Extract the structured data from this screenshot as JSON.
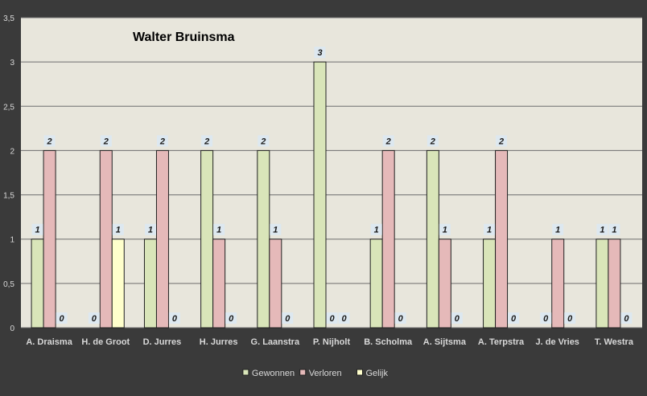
{
  "chart_data": {
    "type": "bar",
    "title": "Walter Bruinsma",
    "categories": [
      "A. Draisma",
      "H. de Groot",
      "D. Jurres",
      "H. Jurres",
      "G. Laanstra",
      "P. Nijholt",
      "B. Scholma",
      "A. Sijtsma",
      "A. Terpstra",
      "J. de Vries",
      "T. Westra"
    ],
    "series": [
      {
        "name": "Gewonnen",
        "color": "#d9e5b9",
        "values": [
          1,
          0,
          1,
          2,
          2,
          3,
          1,
          2,
          1,
          0,
          1
        ]
      },
      {
        "name": "Verloren",
        "color": "#e5b9b9",
        "values": [
          2,
          2,
          2,
          1,
          1,
          0,
          2,
          1,
          2,
          1,
          1
        ]
      },
      {
        "name": "Gelijk",
        "color": "#ffffcc",
        "values": [
          0,
          1,
          0,
          0,
          0,
          0,
          0,
          0,
          0,
          0,
          0
        ]
      }
    ],
    "ylim": [
      0,
      3.5
    ],
    "yticks": [
      "0",
      "0,5",
      "1",
      "1,5",
      "2",
      "2,5",
      "3",
      "3,5"
    ],
    "ytick_values": [
      0,
      0.5,
      1,
      1.5,
      2,
      2.5,
      3,
      3.5
    ],
    "xlabel": "",
    "ylabel": "",
    "grid": true,
    "legend_position": "bottom",
    "plot_background": "#e8e6dc",
    "page_background": "#3a3a3a",
    "label_background": "#dde8f0"
  }
}
